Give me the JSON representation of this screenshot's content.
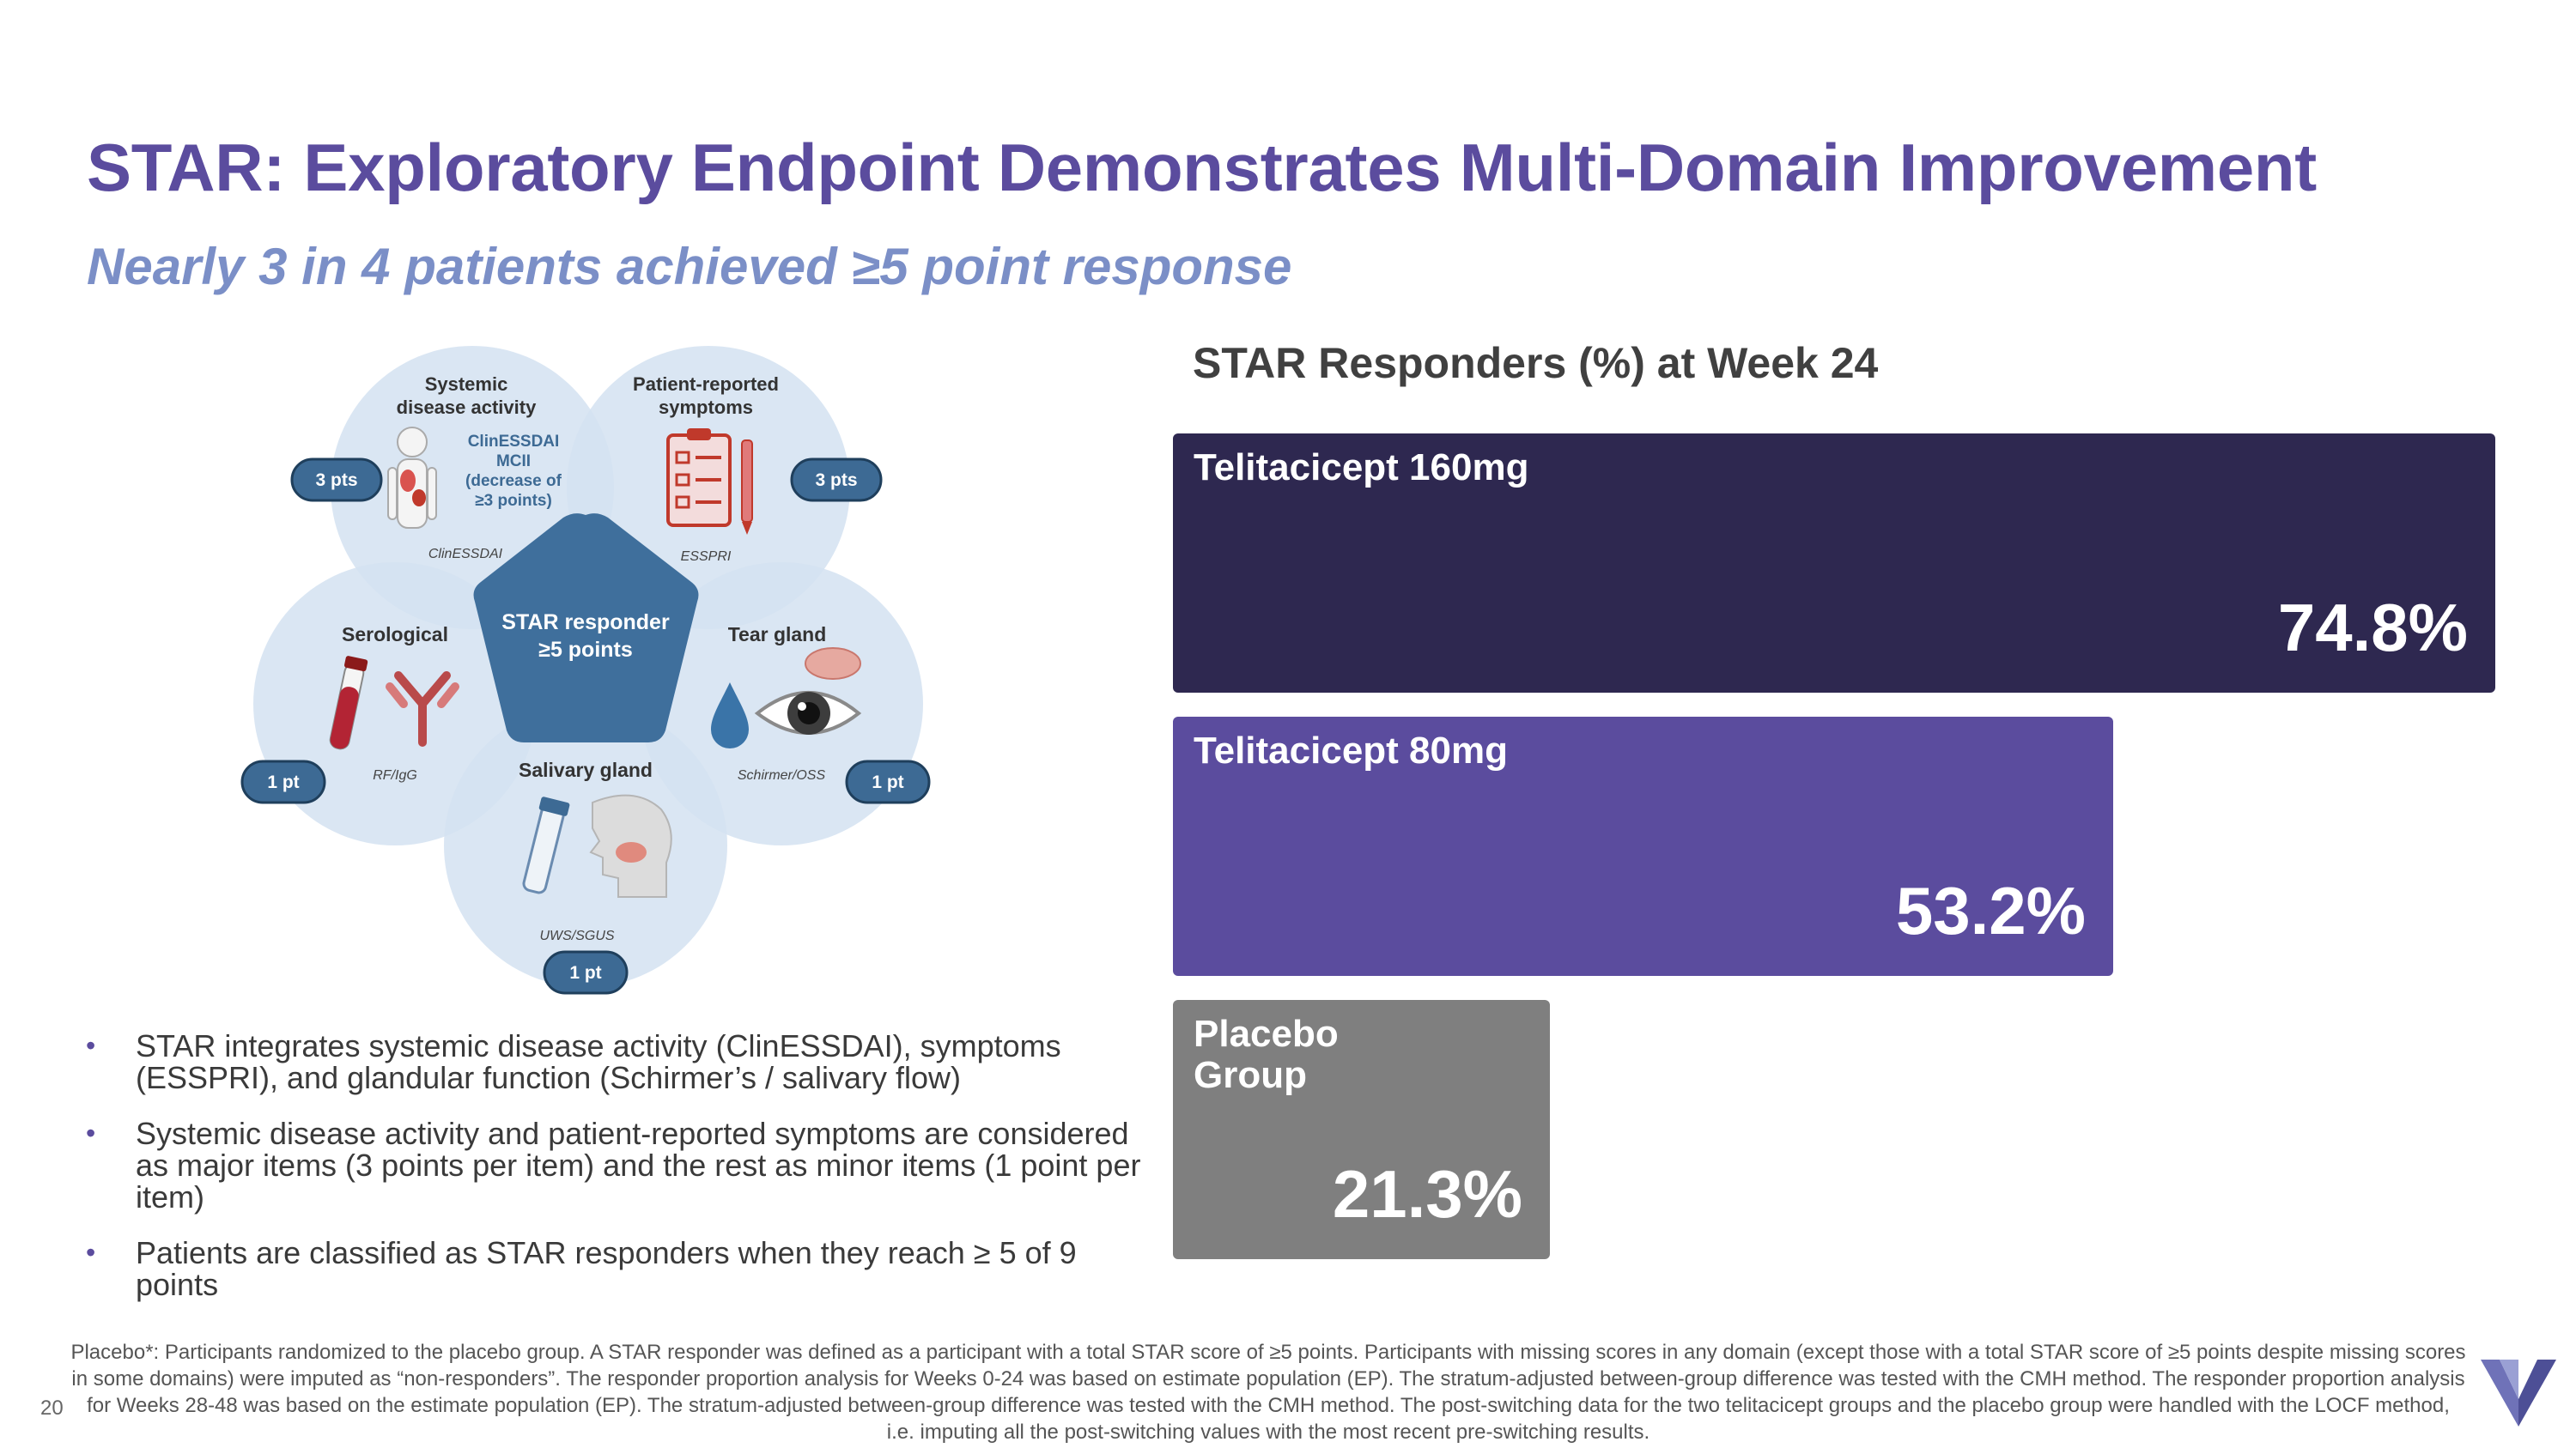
{
  "title": "STAR: Exploratory Endpoint Demonstrates Multi-Domain Improvement",
  "subtitle": "Nearly 3 in 4 patients achieved ≥5 point response",
  "diagram": {
    "center_line1": "STAR responder",
    "center_line2": "≥5 points",
    "domains": [
      {
        "title_line1": "Systemic",
        "title_line2": "disease activity",
        "tool": "ClinESSDAI",
        "points": "3 pts",
        "note_lines": [
          "ClinESSDAI",
          "MCII",
          "(decrease of",
          "≥3 points)"
        ]
      },
      {
        "title_line1": "Patient-reported",
        "title_line2": "symptoms",
        "tool": "ESSPRI",
        "points": "3 pts"
      },
      {
        "title_line1": "Tear gland",
        "tool": "Schirmer/OSS",
        "points": "1 pt"
      },
      {
        "title_line1": "Salivary gland",
        "tool": "UWS/SGUS",
        "points": "1 pt"
      },
      {
        "title_line1": "Serological",
        "tool": "RF/IgG",
        "points": "1 pt"
      }
    ]
  },
  "bullets": [
    "STAR integrates systemic disease activity (ClinESSDAI), symptoms (ESSPRI), and glandular function (Schirmer’s / salivary flow)",
    "Systemic disease activity and patient-reported symptoms are considered as major items (3 points per item) and the rest as minor items (1 point per item)",
    "Patients are classified as STAR responders when they reach ≥ 5 of 9 points"
  ],
  "chart_data": {
    "type": "bar",
    "orientation": "horizontal",
    "title": "STAR Responders (%) at Week 24",
    "categories": [
      "Telitacicept 160mg",
      "Telitacicept 80mg",
      "Placebo\nGroup"
    ],
    "values": [
      74.8,
      53.2,
      21.3
    ],
    "value_labels": [
      "74.8%",
      "53.2%",
      "21.3%"
    ],
    "unit": "%",
    "xlim": [
      0,
      74.8
    ],
    "colors": [
      "#2e2850",
      "#5b4c9e",
      "#7f7f7f"
    ],
    "xlabel": "",
    "ylabel": ""
  },
  "footnote": "Placebo*: Participants randomized to the placebo group. A STAR responder was defined as a participant with a total STAR score of ≥5 points. Participants with missing scores in any domain (except those with a total STAR score of ≥5 points despite missing scores in some domains) were imputed as “non-responders”. The responder proportion analysis for Weeks 0-24 was based on estimate population (EP). The stratum-adjusted between-group difference was tested with the CMH method. The responder proportion analysis for Weeks 28-48 was based on the estimate population (EP). The stratum-adjusted between-group difference was tested with the CMH method. The post-switching data for the two telitacicept groups and the placebo group were handled with the LOCF method, i.e. imputing all the post-switching values with the most recent pre-switching results.",
  "page_number": "20",
  "colors": {
    "accent": "#5b4c9e",
    "subtitle": "#7b8fc7",
    "circle": "#d3e2f1",
    "pentagon": "#3f6f9c",
    "pill": "#3d6a94"
  }
}
